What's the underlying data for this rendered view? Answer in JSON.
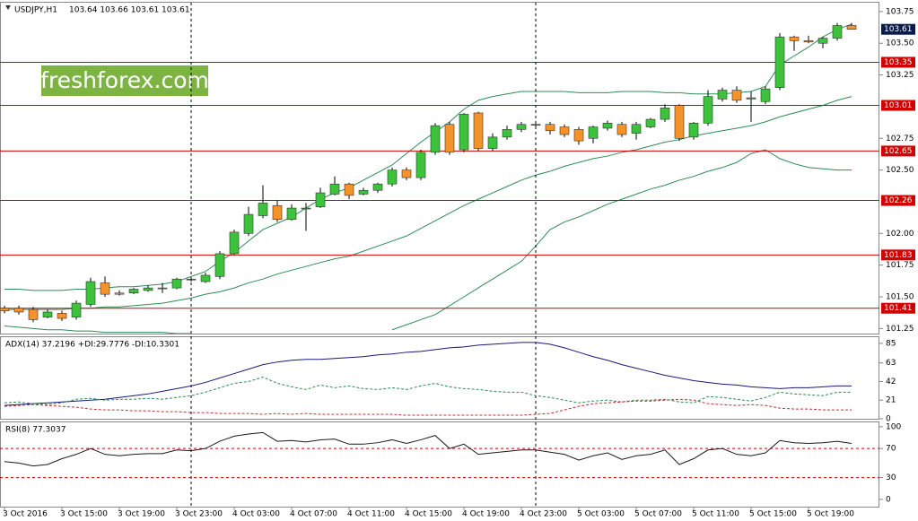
{
  "chart_data": [
    {
      "type": "candlestick",
      "title": "USDJPY,H1",
      "subtitle": "103.64 103.66 103.61 103.61",
      "watermark": "freshforex.com",
      "categories": [
        "3 Oct 2016",
        null,
        null,
        null,
        "3 Oct 15:00",
        null,
        null,
        null,
        "3 Oct 19:00",
        null,
        null,
        null,
        "3 Oct 23:00",
        null,
        null,
        null,
        "4 Oct 03:00",
        null,
        null,
        null,
        "4 Oct 07:00",
        null,
        null,
        null,
        "4 Oct 11:00",
        null,
        null,
        null,
        "4 Oct 15:00",
        null,
        null,
        null,
        "4 Oct 19:00",
        null,
        null,
        null,
        "4 Oct 23:00",
        null,
        null,
        null,
        "5 Oct 03:00",
        null,
        null,
        null,
        "5 Oct 07:00",
        null,
        null,
        null,
        "5 Oct 11:00",
        null,
        null,
        null,
        "5 Oct 15:00",
        null,
        null,
        null,
        "5 Oct 19:00",
        null,
        null,
        null
      ],
      "open": [
        101.41,
        101.41,
        101.4,
        101.34,
        101.37,
        101.34,
        101.44,
        101.61,
        101.53,
        101.53,
        101.55,
        101.57,
        101.57,
        101.64,
        101.62,
        101.66,
        101.84,
        102.0,
        102.14,
        102.22,
        102.11,
        102.2,
        102.21,
        102.31,
        102.39,
        102.31,
        102.34,
        102.39,
        102.5,
        102.44,
        102.64,
        102.86,
        102.66,
        102.95,
        102.67,
        102.76,
        102.82,
        102.86,
        102.86,
        102.84,
        102.82,
        102.75,
        102.83,
        102.86,
        102.79,
        102.84,
        102.9,
        103.01,
        102.76,
        102.87,
        103.06,
        103.13,
        103.06,
        103.04,
        103.15,
        103.55,
        103.52,
        103.5,
        103.54,
        103.64
      ],
      "high": [
        101.43,
        101.43,
        101.42,
        101.4,
        101.39,
        101.47,
        101.65,
        101.66,
        101.55,
        101.57,
        101.59,
        101.61,
        101.65,
        101.65,
        101.69,
        101.86,
        102.03,
        102.21,
        102.38,
        102.26,
        102.23,
        102.24,
        102.36,
        102.45,
        102.4,
        102.36,
        102.4,
        102.52,
        102.52,
        102.66,
        102.87,
        102.88,
        102.95,
        102.96,
        102.79,
        102.85,
        102.88,
        102.88,
        102.88,
        102.86,
        102.84,
        102.85,
        102.89,
        102.88,
        102.88,
        102.91,
        103.02,
        103.02,
        102.88,
        103.13,
        103.15,
        103.16,
        103.12,
        103.16,
        103.58,
        103.56,
        103.56,
        103.55,
        103.66,
        103.66
      ],
      "low": [
        101.37,
        101.36,
        101.3,
        101.33,
        101.31,
        101.32,
        101.42,
        101.5,
        101.51,
        101.52,
        101.54,
        101.53,
        101.56,
        101.62,
        101.61,
        101.64,
        101.83,
        101.98,
        102.12,
        102.09,
        102.1,
        102.02,
        102.2,
        102.3,
        102.27,
        102.3,
        102.32,
        102.37,
        102.42,
        102.42,
        102.62,
        102.62,
        102.64,
        102.65,
        102.65,
        102.74,
        102.8,
        102.84,
        102.78,
        102.76,
        102.7,
        102.71,
        102.81,
        102.76,
        102.74,
        102.83,
        102.88,
        102.73,
        102.74,
        102.85,
        103.04,
        103.03,
        102.88,
        103.02,
        103.13,
        103.44,
        103.5,
        103.46,
        103.52,
        103.61
      ],
      "close": [
        101.39,
        101.38,
        101.32,
        101.38,
        101.33,
        101.45,
        101.62,
        101.52,
        101.52,
        101.56,
        101.57,
        101.57,
        101.64,
        101.64,
        101.67,
        101.84,
        102.01,
        102.15,
        102.24,
        102.11,
        102.2,
        102.2,
        102.32,
        102.39,
        102.3,
        102.34,
        102.39,
        102.5,
        102.44,
        102.64,
        102.85,
        102.64,
        102.94,
        102.67,
        102.76,
        102.82,
        102.86,
        102.86,
        102.81,
        102.78,
        102.73,
        102.84,
        102.87,
        102.78,
        102.86,
        102.9,
        102.99,
        102.75,
        102.87,
        103.08,
        103.13,
        103.05,
        103.07,
        103.14,
        103.55,
        103.52,
        103.51,
        103.54,
        103.64,
        103.61
      ],
      "up_color": "#3dc23d",
      "down_color": "#f5922a",
      "lines": [
        {
          "color": "#2e8b57",
          "values": [
            101.56,
            101.56,
            101.55,
            101.55,
            101.55,
            101.56,
            101.56,
            101.57,
            101.58,
            101.58,
            101.59,
            101.6,
            101.62,
            101.66,
            101.7,
            101.78,
            101.85,
            101.94,
            102.03,
            102.08,
            102.13,
            102.2,
            102.27,
            102.32,
            102.36,
            102.42,
            102.48,
            102.54,
            102.63,
            102.72,
            102.8,
            102.88,
            102.98,
            103.05,
            103.08,
            103.1,
            103.12,
            103.12,
            103.12,
            103.12,
            103.11,
            103.11,
            103.11,
            103.12,
            103.12,
            103.12,
            103.11,
            103.11,
            103.1,
            103.1,
            103.1,
            103.11,
            103.12,
            103.16,
            103.33,
            103.4,
            103.47,
            103.55,
            103.61,
            103.65
          ]
        },
        {
          "color": "#2e8b57",
          "values": [
            101.4,
            101.4,
            101.4,
            101.4,
            101.4,
            101.41,
            101.41,
            101.42,
            101.42,
            101.43,
            101.44,
            101.45,
            101.47,
            101.49,
            101.52,
            101.54,
            101.57,
            101.61,
            101.64,
            101.68,
            101.71,
            101.74,
            101.77,
            101.8,
            101.82,
            101.86,
            101.9,
            101.94,
            101.98,
            102.04,
            102.1,
            102.16,
            102.22,
            102.27,
            102.32,
            102.37,
            102.42,
            102.46,
            102.49,
            102.53,
            102.56,
            102.59,
            102.61,
            102.64,
            102.66,
            102.69,
            102.72,
            102.74,
            102.77,
            102.79,
            102.81,
            102.83,
            102.85,
            102.88,
            102.92,
            102.95,
            102.98,
            103.01,
            103.05,
            103.08
          ]
        },
        {
          "color": "#2e8b57",
          "values": [
            101.27,
            101.26,
            101.25,
            101.24,
            101.24,
            101.23,
            101.23,
            101.22,
            101.22,
            101.22,
            101.22,
            101.22,
            101.21,
            101.21,
            null,
            null,
            null,
            null,
            null,
            null,
            null,
            null,
            null,
            null,
            null,
            null,
            null,
            101.24,
            101.28,
            101.32,
            101.36,
            101.43,
            101.5,
            101.57,
            101.64,
            101.71,
            101.78,
            101.9,
            102.03,
            102.09,
            102.13,
            102.18,
            102.23,
            102.27,
            102.31,
            102.35,
            102.38,
            102.42,
            102.45,
            102.49,
            102.52,
            102.56,
            102.63,
            102.66,
            102.59,
            102.55,
            102.52,
            102.51,
            102.5,
            102.5
          ]
        }
      ],
      "levels": [
        103.35,
        103.01,
        102.65,
        102.26,
        101.83,
        101.41
      ],
      "level_color": "#d00000",
      "last_price": 103.61,
      "day_separators": [
        13,
        37
      ],
      "ylim": [
        101.21,
        103.82
      ],
      "yticks": [
        101.25,
        {
          "value": 101.5,
          "label": "101.50"
        },
        101.75,
        {
          "value": 102,
          "label": "102.00"
        },
        {
          "value": 102.5,
          "label": "102.50"
        },
        102.75,
        103.25,
        {
          "value": 103.5,
          "label": "103.50"
        },
        103.75
      ]
    },
    {
      "type": "line",
      "title": "ADX(14) 37.2196 +DI:29.7776 -DI:10.3301",
      "series": [
        {
          "color": "#1a1a7a",
          "dash": false,
          "values": [
            15,
            16,
            17,
            18,
            19,
            20,
            21,
            22,
            24,
            26,
            28,
            31,
            34,
            37,
            41,
            46,
            51,
            56,
            61,
            64,
            66,
            67,
            67,
            68,
            69,
            70,
            72,
            73,
            75,
            76,
            78,
            80,
            81,
            83,
            84,
            85,
            86,
            86,
            84,
            80,
            75,
            70,
            66,
            61,
            57,
            53,
            49,
            46,
            43,
            41,
            39,
            38,
            36,
            35,
            34,
            35,
            35,
            36,
            37,
            37
          ]
        },
        {
          "color": "#2e8b57",
          "dash": true,
          "values": [
            18,
            19,
            17,
            16,
            18,
            22,
            23,
            21,
            22,
            22,
            23,
            22,
            24,
            26,
            30,
            35,
            40,
            42,
            47,
            40,
            36,
            33,
            38,
            35,
            37,
            34,
            33,
            35,
            33,
            37,
            40,
            36,
            34,
            33,
            31,
            30,
            30,
            26,
            24,
            21,
            18,
            20,
            21,
            19,
            21,
            21,
            22,
            19,
            18,
            25,
            24,
            22,
            20,
            24,
            30,
            28,
            27,
            26,
            30,
            30
          ]
        },
        {
          "color": "#c03030",
          "dash": true,
          "values": [
            14,
            15,
            16,
            15,
            14,
            13,
            11,
            10,
            10,
            9,
            9,
            8,
            8,
            7,
            7,
            6,
            6,
            6,
            5,
            6,
            5,
            6,
            5,
            5,
            5,
            5,
            5,
            5,
            4,
            4,
            4,
            4,
            4,
            4,
            4,
            4,
            4,
            5,
            6,
            10,
            14,
            17,
            18,
            19,
            20,
            20,
            21,
            22,
            21,
            17,
            16,
            15,
            16,
            15,
            12,
            11,
            11,
            10,
            10,
            10
          ]
        }
      ],
      "ylim": [
        0,
        92
      ],
      "yticks": [
        0,
        21,
        42,
        63,
        85
      ]
    },
    {
      "type": "line",
      "title": "RSI(8) 77.3037",
      "series": [
        {
          "color": "#1a1a1a",
          "dash": false,
          "values": [
            52,
            50,
            46,
            48,
            56,
            62,
            70,
            62,
            60,
            62,
            63,
            63,
            68,
            67,
            70,
            80,
            87,
            90,
            92,
            80,
            81,
            79,
            82,
            83,
            76,
            76,
            78,
            82,
            77,
            82,
            88,
            70,
            76,
            62,
            64,
            66,
            68,
            68,
            65,
            62,
            54,
            60,
            64,
            55,
            60,
            62,
            68,
            48,
            56,
            68,
            70,
            62,
            60,
            64,
            81,
            78,
            77,
            78,
            80,
            77
          ]
        }
      ],
      "levels": [
        30,
        70
      ],
      "level_color": "#d00000",
      "ylim": [
        -10,
        106
      ],
      "yticks": [
        0,
        30,
        70,
        100
      ]
    }
  ]
}
